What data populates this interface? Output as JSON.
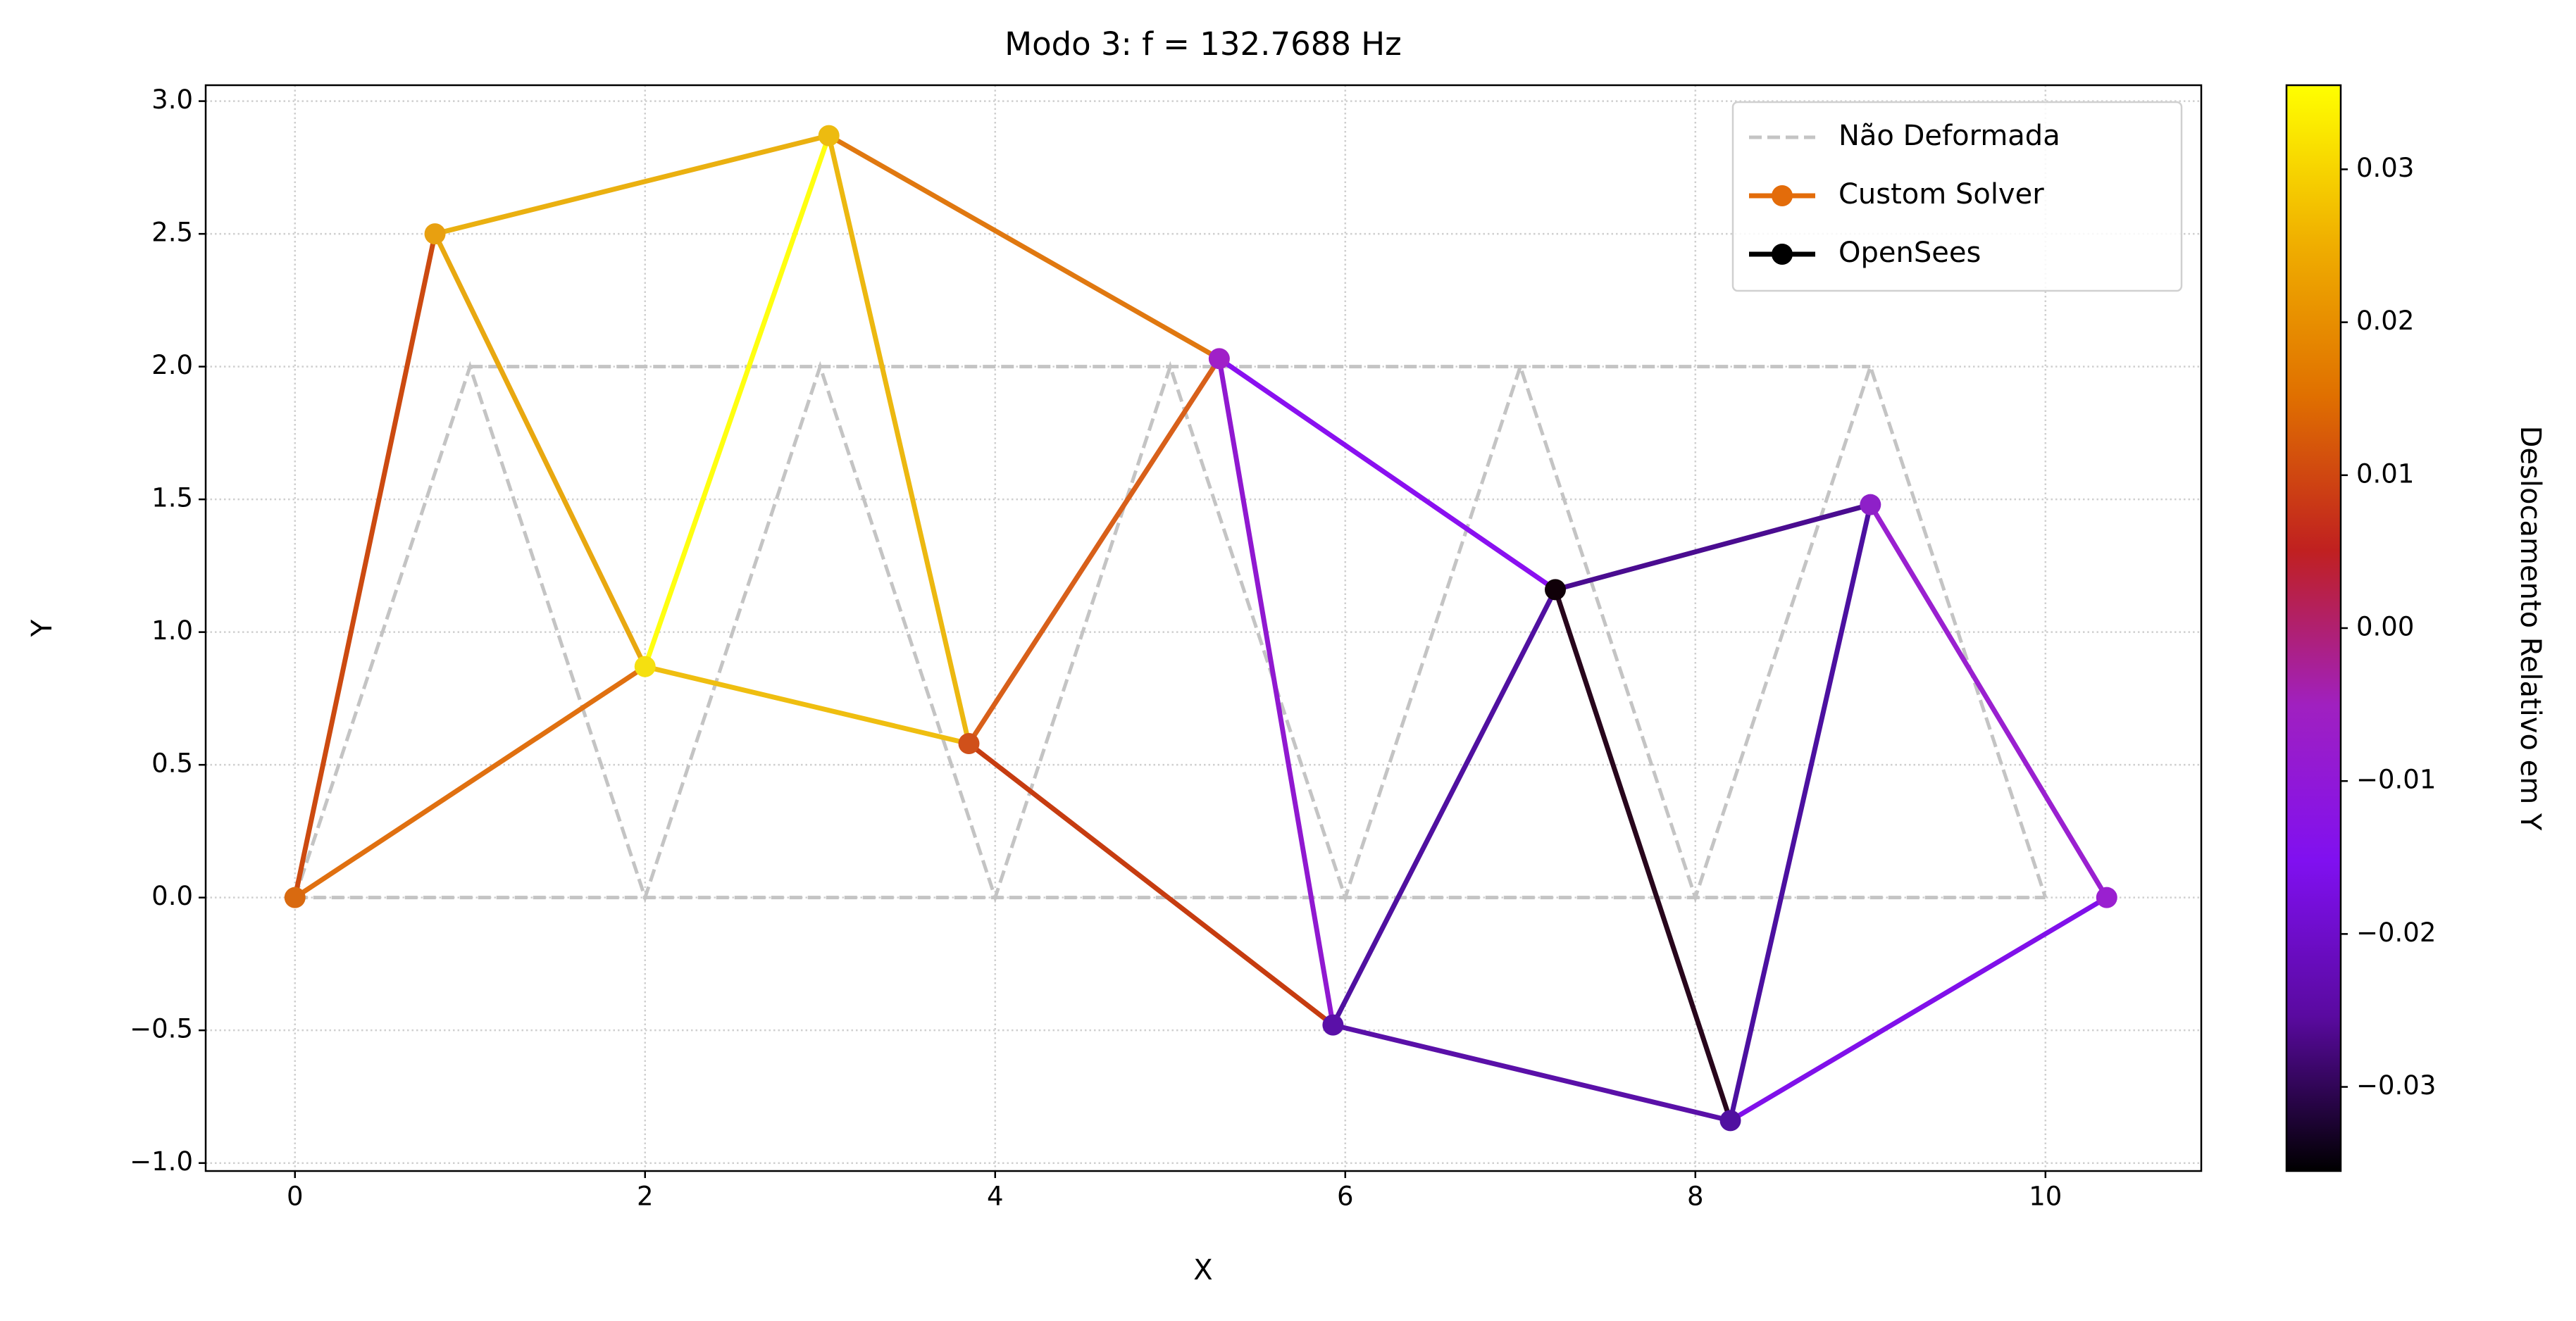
{
  "chart_data": {
    "type": "truss",
    "title": "Modo 3: f = 132.7688 Hz",
    "xlabel": "X",
    "ylabel": "Y",
    "xlim": [
      -0.51,
      10.89
    ],
    "ylim": [
      -1.03,
      3.06
    ],
    "xticks": [
      0,
      2,
      4,
      6,
      8,
      10
    ],
    "yticks": [
      {
        "value": -1.0,
        "label": "−1.0"
      },
      {
        "value": -0.5,
        "label": "−0.5"
      },
      {
        "value": 0.0,
        "label": "0.0"
      },
      {
        "value": 0.5,
        "label": "0.5"
      },
      {
        "value": 1.0,
        "label": "1.0"
      },
      {
        "value": 1.5,
        "label": "1.5"
      },
      {
        "value": 2.0,
        "label": "2.0"
      },
      {
        "value": 2.5,
        "label": "2.5"
      },
      {
        "value": 3.0,
        "label": "3.0"
      }
    ],
    "grid": true,
    "legend_position": "upper right",
    "series": [
      {
        "name": "Não Deformada",
        "color": "#c4c4c4",
        "dashed": true,
        "lines": [
          {
            "x": [
              0,
              1,
              2,
              3,
              4,
              5,
              6,
              7,
              8,
              9,
              10
            ],
            "y": [
              0,
              2,
              0,
              2,
              0,
              2,
              0,
              2,
              0,
              2,
              0
            ]
          },
          {
            "x": [
              0,
              10
            ],
            "y": [
              0,
              0
            ]
          },
          {
            "x": [
              1,
              9
            ],
            "y": [
              2,
              2
            ]
          }
        ]
      },
      {
        "name": "Custom Solver",
        "color": "#e36c0a",
        "members": [
          {
            "x": [
              0,
              2
            ],
            "y": [
              0,
              0.87
            ],
            "color": "#e07010"
          },
          {
            "x": [
              2,
              3.85
            ],
            "y": [
              0.87,
              0.58
            ],
            "color": "#efbe10"
          },
          {
            "x": [
              3.85,
              5.93
            ],
            "y": [
              0.58,
              -0.48
            ],
            "color": "#c63c10"
          },
          {
            "x": [
              5.93,
              8.2
            ],
            "y": [
              -0.48,
              -0.84
            ],
            "color": "#5a10a8"
          },
          {
            "x": [
              8.2,
              10.35
            ],
            "y": [
              -0.84,
              0.0
            ],
            "color": "#8010ea"
          },
          {
            "x": [
              0.8,
              3.05
            ],
            "y": [
              2.5,
              2.87
            ],
            "color": "#eab010"
          },
          {
            "x": [
              3.05,
              5.28
            ],
            "y": [
              2.87,
              2.03
            ],
            "color": "#e07810"
          },
          {
            "x": [
              5.28,
              7.2
            ],
            "y": [
              2.03,
              1.16
            ],
            "color": "#8a10f0"
          },
          {
            "x": [
              7.2,
              9.0
            ],
            "y": [
              1.16,
              1.48
            ],
            "color": "#4a0c90"
          },
          {
            "x": [
              0,
              0.8
            ],
            "y": [
              0,
              2.5
            ],
            "color": "#cc4a10"
          },
          {
            "x": [
              0.8,
              2
            ],
            "y": [
              2.5,
              0.87
            ],
            "color": "#e8a810"
          },
          {
            "x": [
              2,
              3.05
            ],
            "y": [
              0.87,
              2.87
            ],
            "color": "#ffff10"
          },
          {
            "x": [
              3.05,
              3.85
            ],
            "y": [
              2.87,
              0.58
            ],
            "color": "#ecb810"
          },
          {
            "x": [
              3.85,
              5.28
            ],
            "y": [
              0.58,
              2.03
            ],
            "color": "#d8601a"
          },
          {
            "x": [
              5.28,
              5.93
            ],
            "y": [
              2.03,
              -0.48
            ],
            "color": "#9018d0"
          },
          {
            "x": [
              5.93,
              7.2
            ],
            "y": [
              -0.48,
              1.16
            ],
            "color": "#5010a0"
          },
          {
            "x": [
              7.2,
              8.2
            ],
            "y": [
              1.16,
              -0.84
            ],
            "color": "#28061c"
          },
          {
            "x": [
              8.2,
              9.0
            ],
            "y": [
              -0.84,
              1.48
            ],
            "color": "#4c10a0"
          },
          {
            "x": [
              9.0,
              10.35
            ],
            "y": [
              1.48,
              0.0
            ],
            "color": "#9a20d0"
          }
        ],
        "nodes": {
          "x": [
            0,
            0.8,
            2,
            3.05,
            3.85,
            5.28,
            5.93,
            7.2,
            8.2,
            9.0,
            10.35
          ],
          "y": [
            0,
            2.5,
            0.87,
            2.87,
            0.58,
            2.03,
            -0.48,
            1.16,
            -0.84,
            1.48,
            0.0
          ],
          "colors": [
            "#d96a10",
            "#e8a010",
            "#f5e010",
            "#edbb10",
            "#d0501a",
            "#a020c8",
            "#5a10a8",
            "#100008",
            "#5010a0",
            "#8e20c8",
            "#9a20d0"
          ]
        }
      },
      {
        "name": "OpenSees",
        "color": "#000000"
      }
    ],
    "colorbar": {
      "label": "Deslocamento Relativo em Y",
      "lim": [
        -0.0355,
        0.0355
      ],
      "ticks": [
        {
          "value": -0.03,
          "label": "−0.03"
        },
        {
          "value": -0.02,
          "label": "−0.02"
        },
        {
          "value": -0.01,
          "label": "−0.01"
        },
        {
          "value": 0.0,
          "label": "0.00"
        },
        {
          "value": 0.01,
          "label": "0.01"
        },
        {
          "value": 0.02,
          "label": "0.02"
        },
        {
          "value": 0.03,
          "label": "0.03"
        }
      ],
      "colors": [
        "#000000",
        "#5a0aa0",
        "#8010f0",
        "#a020c0",
        "#c02020",
        "#e07000",
        "#f0b000",
        "#ffff00"
      ]
    }
  }
}
